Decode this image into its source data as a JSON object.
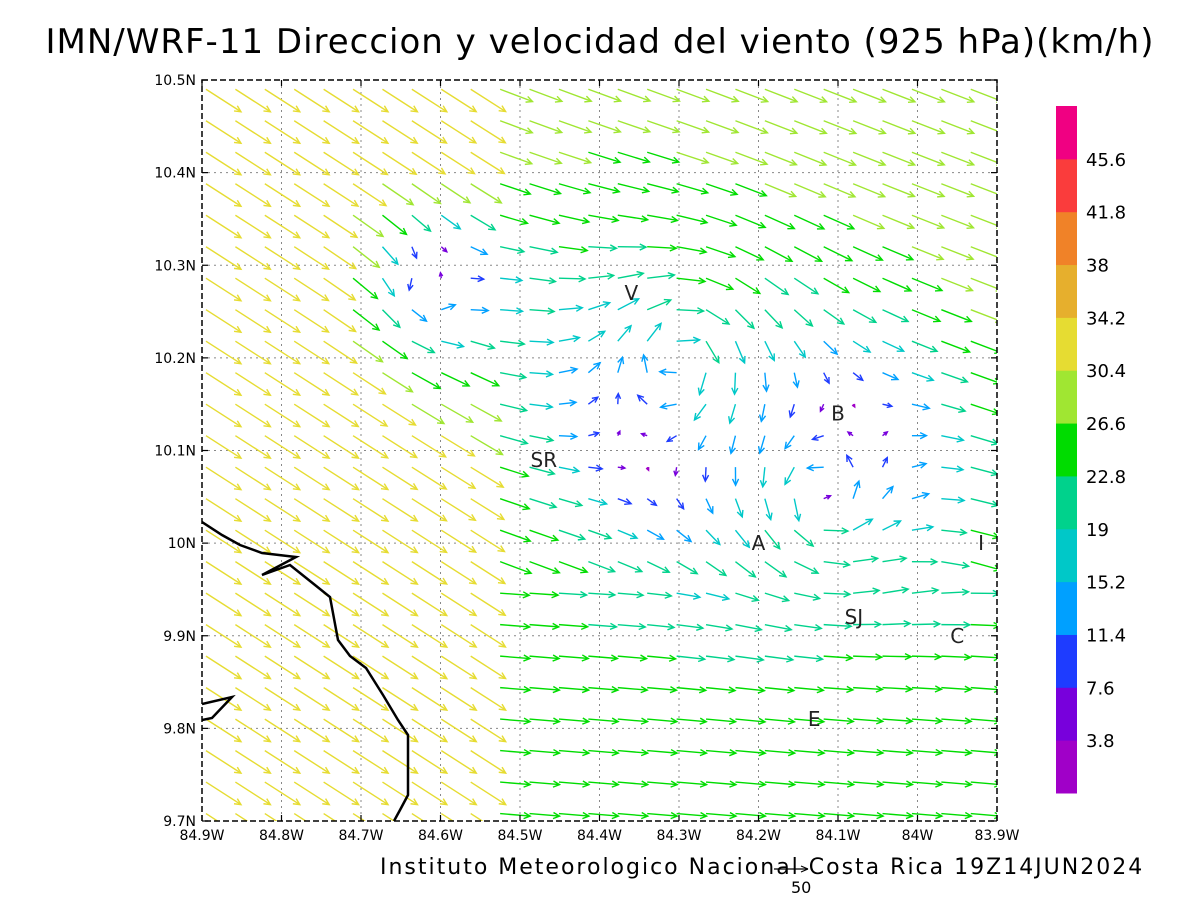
{
  "title": "IMN/WRF-11 Direccion y velocidad del viento (925 hPa)(km/h)",
  "footer": "Instituto Meteorologico Nacional Costa Rica 19Z14JUN2024",
  "reference_vector": {
    "label": "50"
  },
  "map": {
    "lon_range": [
      -84.9,
      -83.9
    ],
    "lat_range": [
      9.7,
      10.5
    ],
    "x_tick_labels": [
      "84.9W",
      "84.8W",
      "84.7W",
      "84.6W",
      "84.5W",
      "84.4W",
      "84.3W",
      "84.2W",
      "84.1W",
      "84W",
      "83.9W"
    ],
    "y_tick_labels": [
      "9.7N",
      "9.8N",
      "9.9N",
      "10N",
      "10.1N",
      "10.2N",
      "10.3N",
      "10.4N",
      "10.5N"
    ],
    "grid": "dotted",
    "places": [
      {
        "label": "V",
        "lon": -84.36,
        "lat": 10.27
      },
      {
        "label": "SR",
        "lon": -84.47,
        "lat": 10.09
      },
      {
        "label": "B",
        "lon": -84.1,
        "lat": 10.14
      },
      {
        "label": "A",
        "lon": -84.2,
        "lat": 10.0
      },
      {
        "label": "I",
        "lon": -83.92,
        "lat": 10.0
      },
      {
        "label": "SJ",
        "lon": -84.08,
        "lat": 9.92
      },
      {
        "label": "C",
        "lon": -83.95,
        "lat": 9.9
      },
      {
        "label": "E",
        "lon": -84.13,
        "lat": 9.81
      }
    ]
  },
  "legend": {
    "labels": [
      "3.8",
      "7.6",
      "11.4",
      "15.2",
      "19",
      "22.8",
      "26.6",
      "30.4",
      "34.2",
      "38",
      "41.8",
      "45.6"
    ],
    "colors": [
      "#a000c8",
      "#7800dc",
      "#1e3cff",
      "#00a0ff",
      "#00c8c8",
      "#00d28c",
      "#00dc00",
      "#a0e632",
      "#e6dc32",
      "#e6af2d",
      "#f08228",
      "#fa3c3c",
      "#f00082"
    ]
  },
  "colors": {
    "coastline": "#000000",
    "frame": "#000000"
  }
}
